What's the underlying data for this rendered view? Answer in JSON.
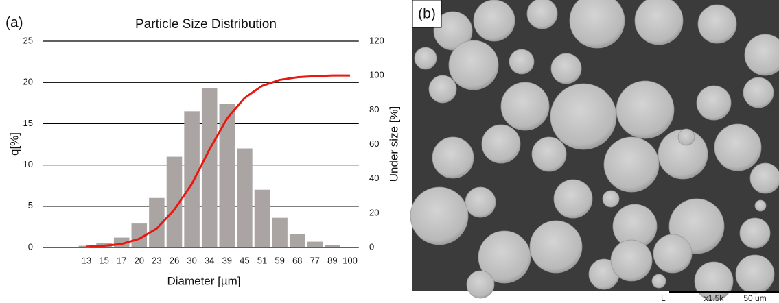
{
  "chart_data": {
    "type": "combo",
    "panel_label": "(a)",
    "title": "Particle Size Distribution",
    "x_label": "Diameter [µm]",
    "y_label": "q[%]",
    "y2_label": "Under size [%]",
    "categories": [
      13,
      15,
      17,
      20,
      23,
      26,
      30,
      34,
      39,
      45,
      51,
      59,
      68,
      77,
      89,
      100
    ],
    "series": [
      {
        "type": "bar",
        "color": "#aaa5a3",
        "values": [
          0.2,
          0.5,
          1.2,
          2.9,
          6,
          11,
          16.5,
          19.3,
          17.4,
          12,
          7,
          3.6,
          1.6,
          0.7,
          0.3,
          0
        ]
      },
      {
        "type": "line",
        "axis": "y2",
        "color": "#e8170f",
        "values": [
          0.5,
          1,
          2,
          5,
          11,
          22,
          37,
          57,
          75,
          87,
          94,
          97.5,
          99,
          99.6,
          100,
          100
        ]
      }
    ],
    "ylim": [
      0,
      25
    ],
    "yticks": [
      0,
      5,
      10,
      15,
      20,
      25
    ],
    "y2lim": [
      0,
      120
    ],
    "y2ticks": [
      0,
      20,
      40,
      60,
      80,
      100,
      120
    ],
    "grid": true
  },
  "image_panel": {
    "label": "(b)",
    "scale_mark": "L",
    "magnification": "x1.5k",
    "scale": "50 um"
  }
}
